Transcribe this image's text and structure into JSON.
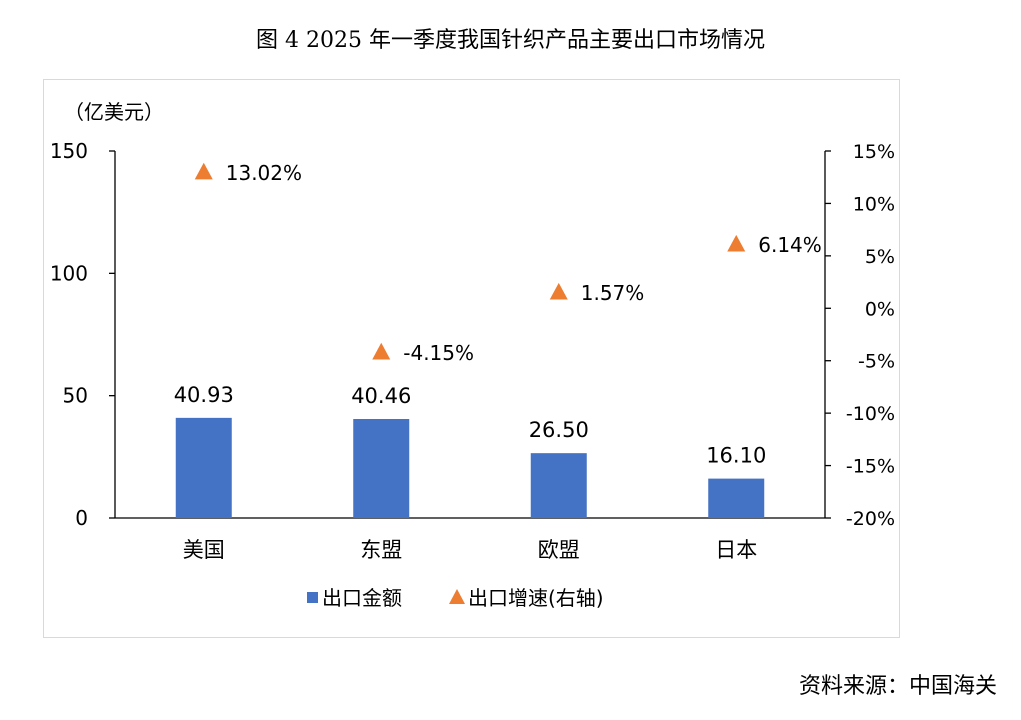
{
  "title": "图 4   2025 年一季度我国针织产品主要出口市场情况",
  "source": "资料来源：中国海关",
  "chart_data": {
    "type": "bar",
    "unit_label": "（亿美元）",
    "categories": [
      "美国",
      "东盟",
      "欧盟",
      "日本"
    ],
    "series": [
      {
        "name": "出口金额",
        "type": "bar",
        "axis": "left",
        "color": "#4472c4",
        "values": [
          40.93,
          40.46,
          26.5,
          16.1
        ],
        "labels": [
          "40.93",
          "40.46",
          "26.50",
          "16.10"
        ]
      },
      {
        "name": "出口增速(右轴)",
        "type": "scatter",
        "marker": "triangle",
        "axis": "right",
        "color": "#ed7d31",
        "values": [
          13.02,
          -4.15,
          1.57,
          6.14
        ],
        "labels": [
          "13.02%",
          "-4.15%",
          "1.57%",
          "6.14%"
        ]
      }
    ],
    "left_axis": {
      "ylim": [
        0,
        150
      ],
      "ticks": [
        "0",
        "50",
        "100",
        "150"
      ]
    },
    "right_axis": {
      "ylim": [
        -20,
        15
      ],
      "ticks": [
        "-20%",
        "-15%",
        "-10%",
        "-5%",
        "0%",
        "5%",
        "10%",
        "15%"
      ]
    },
    "grid": false,
    "legend_position": "bottom"
  }
}
